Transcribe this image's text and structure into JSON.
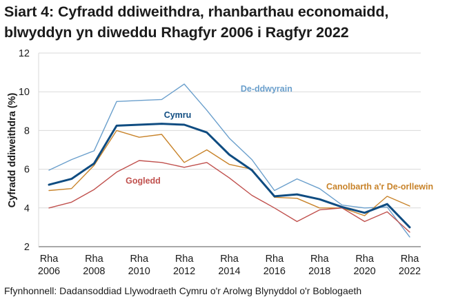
{
  "chart_data": {
    "type": "line",
    "title_lines": [
      "Siart 4: Cyfradd ddiweithdra, rhanbarthau economaidd,",
      "blwyddyn yn diweddu Rhagfyr 2006 i Ragfyr 2022"
    ],
    "xlabel": "",
    "ylabel": "Cyfradd ddiweithdra (%)",
    "x": [
      2006,
      2007,
      2008,
      2009,
      2010,
      2011,
      2012,
      2013,
      2014,
      2015,
      2016,
      2017,
      2018,
      2019,
      2020,
      2021,
      2022
    ],
    "x_tick_labels": [
      {
        "year": 2006,
        "line1": "Rha",
        "line2": "2006"
      },
      {
        "year": 2008,
        "line1": "Rha",
        "line2": "2008"
      },
      {
        "year": 2010,
        "line1": "Rha",
        "line2": "2010"
      },
      {
        "year": 2012,
        "line1": "Rha",
        "line2": "2012"
      },
      {
        "year": 2014,
        "line1": "Rha",
        "line2": "2014"
      },
      {
        "year": 2016,
        "line1": "Rha",
        "line2": "2016"
      },
      {
        "year": 2018,
        "line1": "Rha",
        "line2": "2018"
      },
      {
        "year": 2020,
        "line1": "Rha",
        "line2": "2020"
      },
      {
        "year": 2022,
        "line1": "Rha",
        "line2": "2022"
      }
    ],
    "ylim": [
      2,
      12
    ],
    "yticks": [
      2,
      4,
      6,
      8,
      10,
      12
    ],
    "grid": true,
    "legend": "inline labels",
    "series": [
      {
        "name": "De-ddwyrain",
        "color": "#6a9fcc",
        "emphasis": false,
        "label_anchor_year": 2014.5,
        "label_value": 10.0,
        "values": [
          5.95,
          6.5,
          6.95,
          9.5,
          9.55,
          9.6,
          10.4,
          9.05,
          7.6,
          6.5,
          4.9,
          5.5,
          5.0,
          4.15,
          4.0,
          4.05,
          2.5
        ]
      },
      {
        "name": "Cymru",
        "color": "#0f4c81",
        "emphasis": true,
        "label_anchor_year": 2011.1,
        "label_value": 8.65,
        "values": [
          5.2,
          5.5,
          6.3,
          8.25,
          8.3,
          8.35,
          8.3,
          7.9,
          6.75,
          5.95,
          4.6,
          4.7,
          4.45,
          4.05,
          3.75,
          4.2,
          3.0
        ]
      },
      {
        "name": "Canolbarth a'r De-orllewin",
        "color": "#c8832a",
        "emphasis": false,
        "label_anchor_year": 2018.3,
        "label_value": 4.95,
        "values": [
          4.9,
          5.0,
          6.2,
          8.0,
          7.65,
          7.8,
          6.35,
          7.0,
          6.25,
          6.0,
          4.55,
          4.5,
          4.0,
          4.0,
          3.6,
          4.6,
          4.1
        ]
      },
      {
        "name": "Gogledd",
        "color": "#c0504d",
        "emphasis": false,
        "label_anchor_year": 2009.4,
        "label_value": 5.25,
        "values": [
          4.0,
          4.3,
          4.95,
          5.85,
          6.45,
          6.35,
          6.1,
          6.35,
          5.55,
          4.65,
          4.0,
          3.3,
          3.9,
          4.0,
          3.3,
          3.8,
          2.75
        ]
      }
    ],
    "source": "Ffynhonnell: Dadansoddiad Llywodraeth Cymru o'r Arolwg Blynyddol o'r Boblogaeth"
  }
}
